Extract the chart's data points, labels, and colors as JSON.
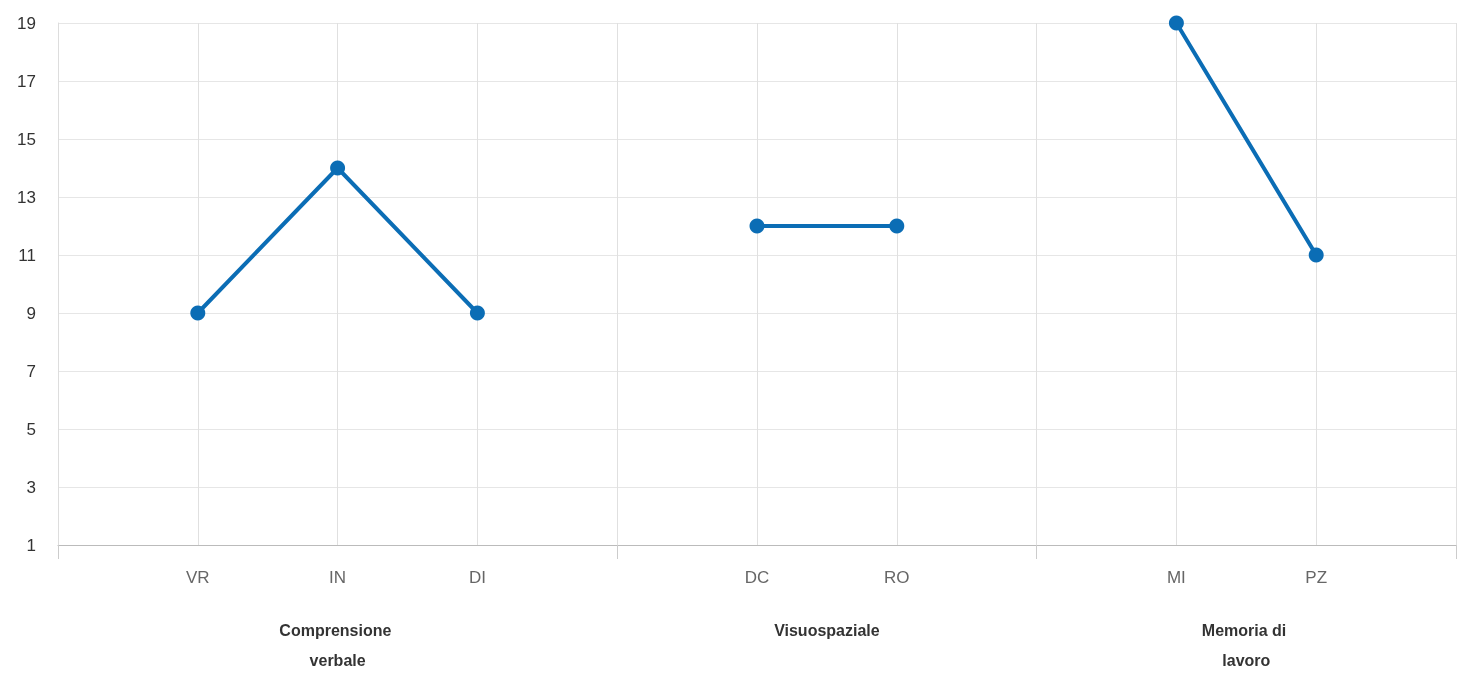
{
  "chart_data": {
    "type": "line",
    "categories": [
      null,
      "VR",
      "IN",
      "DI",
      null,
      "DC",
      "RO",
      null,
      "MI",
      "PZ",
      null
    ],
    "series": [
      {
        "color": "#0b6db5",
        "values": [
          null,
          9,
          14,
          9,
          null,
          12,
          12,
          null,
          19,
          11,
          null
        ]
      }
    ],
    "ylim": [
      1,
      19
    ],
    "yticks": [
      1,
      3,
      5,
      7,
      9,
      11,
      13,
      15,
      17,
      19
    ],
    "grid": true,
    "marker": "circle",
    "line_style": "solid",
    "annotations": [
      "Comprensione verbale",
      "Visuospaziale",
      "Memoria di lavoro"
    ]
  }
}
